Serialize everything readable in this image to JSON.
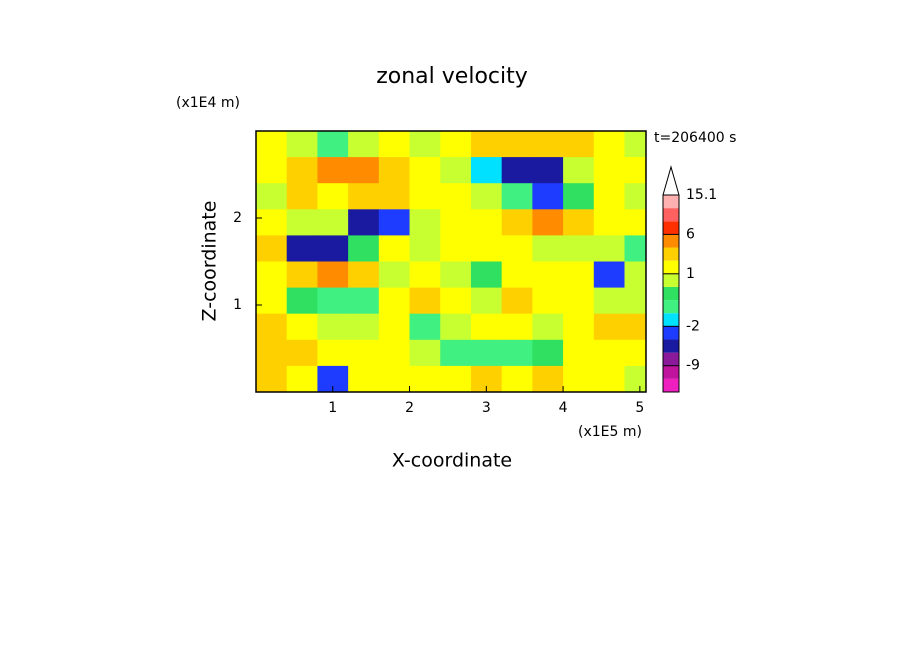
{
  "chart_data": {
    "type": "contour",
    "title": "zonal velocity",
    "x_label": "X-coordinate",
    "y_label": "Z-coordinate",
    "x_unit": "(x1E5 m)",
    "y_unit": "(x1E4 m)",
    "time_label": "t=206400 s",
    "xlim": [
      0,
      5.08
    ],
    "xticks": [
      1,
      2,
      3,
      4,
      5
    ],
    "ylim": [
      0,
      3
    ],
    "yticks": [
      1,
      2
    ],
    "x": [
      0.2,
      0.6,
      1.0,
      1.4,
      1.8,
      2.2,
      2.6,
      3.0,
      3.4,
      3.8,
      4.2,
      4.6,
      5.0
    ],
    "y": [
      2.85,
      2.55,
      2.25,
      1.95,
      1.65,
      1.35,
      1.05,
      0.75,
      0.45,
      0.15
    ],
    "values": [
      [
        1,
        0.5,
        -1,
        0.5,
        1,
        0.5,
        1,
        3,
        3,
        3,
        2,
        1,
        0.5
      ],
      [
        1,
        3,
        4,
        4,
        3,
        1,
        0.5,
        -2,
        -5,
        -6,
        0.5,
        1,
        1
      ],
      [
        0.5,
        2,
        1,
        2,
        3,
        1,
        1,
        0.5,
        -0.5,
        -4,
        0,
        1,
        0.5
      ],
      [
        1,
        0.5,
        0.5,
        -5,
        -4,
        0.5,
        1,
        1,
        3,
        4,
        2,
        1,
        1
      ],
      [
        2,
        -6,
        -6,
        0,
        1,
        0.5,
        1,
        1,
        1,
        0.5,
        0.5,
        0.5,
        -1
      ],
      [
        1,
        3,
        4,
        2,
        0.5,
        1,
        0.5,
        0,
        1,
        1,
        1,
        -3,
        0.5
      ],
      [
        1,
        0,
        -1,
        -1,
        1,
        2,
        1,
        0.5,
        2,
        1,
        1,
        0.5,
        0.5
      ],
      [
        2,
        1,
        0.5,
        0.5,
        1,
        -0.5,
        0.5,
        1,
        1,
        0.5,
        1,
        2,
        2
      ],
      [
        3,
        2,
        1,
        1,
        1,
        0.5,
        -0.5,
        -1,
        -1,
        0,
        1,
        1,
        1
      ],
      [
        2,
        1,
        -3,
        1,
        1,
        1,
        1,
        2,
        1,
        2,
        1,
        1,
        0.5
      ]
    ],
    "levels": [
      -15,
      -12,
      -9,
      -6,
      -4,
      -2,
      -1,
      0,
      0.5,
      1,
      2,
      4,
      6,
      9,
      12,
      15.1
    ],
    "colors": [
      "#f020c0",
      "#c0149e",
      "#8a1a9a",
      "#1a1aa0",
      "#1e3cff",
      "#00e0ff",
      "#40f080",
      "#30e060",
      "#c8ff30",
      "#ffff00",
      "#ffd000",
      "#ff8c00",
      "#ff3000",
      "#ff6060",
      "#ffb0b0"
    ],
    "colorbar_ticks": [
      15.1,
      6,
      1,
      -2,
      -9
    ]
  }
}
